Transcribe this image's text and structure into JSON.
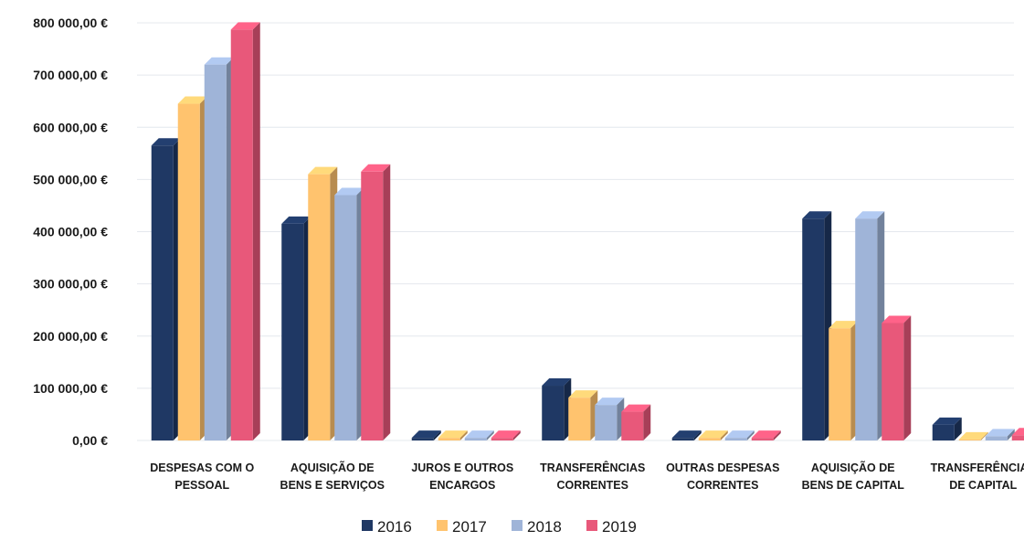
{
  "chart_data": {
    "type": "bar",
    "title": "",
    "xlabel": "",
    "ylabel": "",
    "ylim": [
      0,
      800000
    ],
    "yticks": [
      0,
      100000,
      200000,
      300000,
      400000,
      500000,
      600000,
      700000,
      800000
    ],
    "ytick_labels": [
      "0,00 €",
      "100 000,00 €",
      "200 000,00 €",
      "300 000,00 €",
      "400 000,00 €",
      "500 000,00 €",
      "600 000,00 €",
      "700 000,00 €",
      "800 000,00 €"
    ],
    "grid": true,
    "legend_position": "bottom",
    "categories": [
      [
        "DESPESAS COM O",
        "PESSOAL"
      ],
      [
        "AQUISIÇÃO DE",
        "BENS E SERVIÇOS"
      ],
      [
        "JUROS E OUTROS",
        "ENCARGOS"
      ],
      [
        "TRANSFERÊNCIAS",
        "CORRENTES"
      ],
      [
        "OUTRAS DESPESAS",
        "CORRENTES"
      ],
      [
        "AQUISIÇÃO DE",
        "BENS DE CAPITAL"
      ],
      [
        "TRANSFERÊNCIAS",
        "DE CAPITAL"
      ]
    ],
    "series": [
      {
        "name": "2016",
        "color": "#1f3864",
        "values": [
          565000,
          415000,
          5000,
          105000,
          5000,
          425000,
          30000
        ]
      },
      {
        "name": "2017",
        "color": "#ffc36e",
        "values": [
          645000,
          510000,
          5000,
          82000,
          5000,
          215000,
          2000
        ]
      },
      {
        "name": "2018",
        "color": "#9fb4d8",
        "values": [
          720000,
          470000,
          5000,
          68000,
          5000,
          425000,
          8000
        ]
      },
      {
        "name": "2019",
        "color": "#e8587a",
        "values": [
          787000,
          515000,
          5000,
          55000,
          5000,
          225000,
          10000
        ]
      }
    ]
  }
}
